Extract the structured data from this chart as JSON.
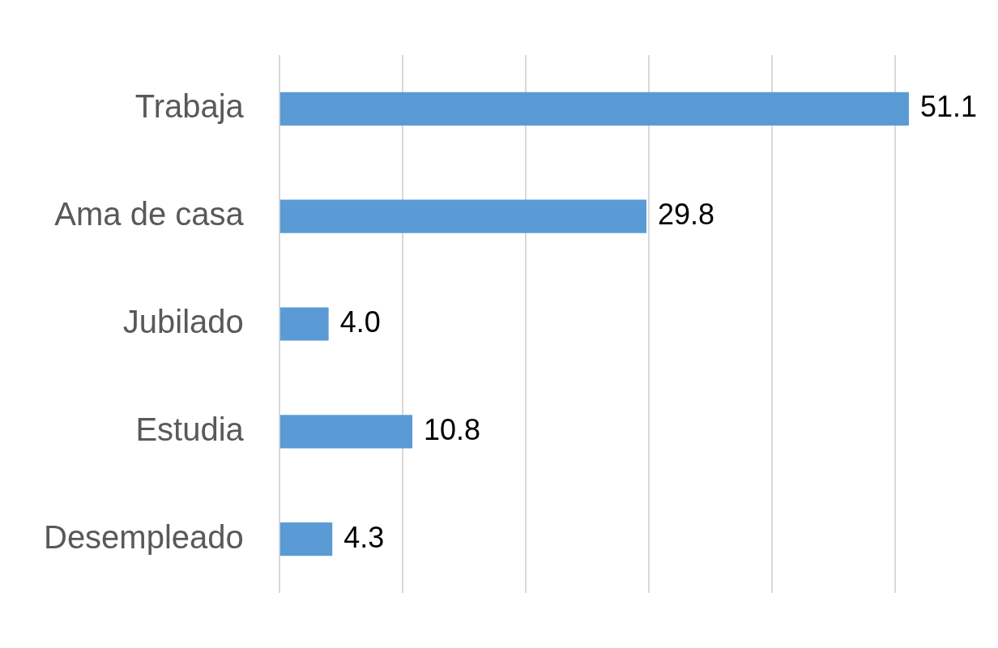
{
  "chart_data": {
    "type": "bar",
    "orientation": "horizontal",
    "categories": [
      "Trabaja",
      "Ama de casa",
      "Jubilado",
      "Estudia",
      "Desempleado"
    ],
    "values": [
      51.1,
      29.8,
      4.0,
      10.8,
      4.3
    ],
    "value_labels": [
      "51.1",
      "29.8",
      "4.0",
      "10.8",
      "4.3"
    ],
    "color": "#5b9bd5",
    "xticks": [
      {
        "value": 0,
        "label": null
      },
      {
        "value": 10,
        "label": null
      },
      {
        "value": 20,
        "label": null
      },
      {
        "value": 30,
        "label": null
      },
      {
        "value": 40,
        "label": null
      },
      {
        "value": 50,
        "label": null
      }
    ],
    "grid": "x",
    "tick_labels": "y",
    "legend": false
  }
}
